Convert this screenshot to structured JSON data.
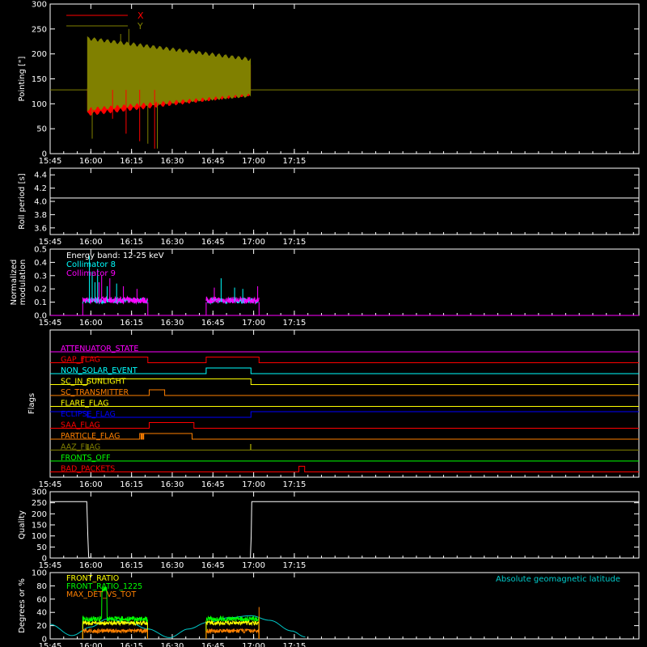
{
  "colors": {
    "background": "#000000",
    "axis": "#ffffff",
    "x_series": "#ff0000",
    "y_series": "#808000",
    "roll": "#ffffff",
    "collimator8": "#00ffff",
    "collimator9": "#ff00ff",
    "geomag": "#00cccc",
    "front_ratio": "#ffff00",
    "front_ratio_1225": "#00ff00",
    "max_det": "#ff8000"
  },
  "time_axis": {
    "range_min": [
      945,
      1162
    ],
    "ticks": [
      {
        "t": 945,
        "label": "15:45"
      },
      {
        "t": 960,
        "label": "16:00"
      },
      {
        "t": 975,
        "label": "16:15"
      },
      {
        "t": 990,
        "label": "16:30"
      },
      {
        "t": 1005,
        "label": "16:45"
      },
      {
        "t": 1020,
        "label": "17:00"
      },
      {
        "t": 1035,
        "label": "17:15"
      }
    ]
  },
  "chart_data": [
    {
      "id": "pointing",
      "type": "line",
      "ylabel": "Pointing [\"]",
      "ylim": [
        0,
        300
      ],
      "yticks": [
        {
          "v": 0,
          "label": "0"
        },
        {
          "v": 50,
          "label": "50"
        },
        {
          "v": 100,
          "label": "100"
        },
        {
          "v": 150,
          "label": "150"
        },
        {
          "v": 200,
          "label": "200"
        },
        {
          "v": 250,
          "label": "250"
        },
        {
          "v": 300,
          "label": "300"
        }
      ],
      "legend": [
        {
          "name": "X",
          "color": "#ff0000"
        },
        {
          "name": "Y",
          "color": "#808000"
        }
      ],
      "baseline": 128,
      "active_range": [
        958.8,
        1019
      ],
      "x_band": {
        "start": [
          80,
          135
        ],
        "end": [
          120,
          180
        ]
      },
      "y_band": {
        "start": [
          90,
          230
        ],
        "end": [
          118,
          188
        ]
      },
      "spikes": [
        {
          "t": 960.5,
          "low": 30,
          "high": 128
        },
        {
          "t": 968,
          "low": 70,
          "high": 128
        },
        {
          "t": 971,
          "low": 128,
          "high": 240
        },
        {
          "t": 973,
          "low": 40,
          "high": 128
        },
        {
          "t": 974,
          "low": 128,
          "high": 250
        },
        {
          "t": 978,
          "low": 25,
          "high": 128
        },
        {
          "t": 981,
          "low": 20,
          "high": 128
        },
        {
          "t": 983.5,
          "low": 10,
          "high": 128
        },
        {
          "t": 984.5,
          "low": 10,
          "high": 128
        }
      ]
    },
    {
      "id": "roll",
      "type": "line",
      "ylabel": "Roll period [s]",
      "ylim": [
        3.5,
        4.5
      ],
      "yticks": [
        {
          "v": 3.6,
          "label": "3.6"
        },
        {
          "v": 3.8,
          "label": "3.8"
        },
        {
          "v": 4.0,
          "label": "4.0"
        },
        {
          "v": 4.2,
          "label": "4.2"
        },
        {
          "v": 4.4,
          "label": "4.4"
        }
      ],
      "value": 4.05
    },
    {
      "id": "modulation",
      "type": "line",
      "ylabel": [
        "Normalized",
        "modulation"
      ],
      "ylim": [
        0,
        0.5
      ],
      "yticks": [
        {
          "v": 0.0,
          "label": "0.0"
        },
        {
          "v": 0.1,
          "label": "0.1"
        },
        {
          "v": 0.2,
          "label": "0.2"
        },
        {
          "v": 0.3,
          "label": "0.3"
        },
        {
          "v": 0.4,
          "label": "0.4"
        },
        {
          "v": 0.5,
          "label": "0.5"
        }
      ],
      "legend": [
        {
          "name": "Energy band: 12-25 keV",
          "color": "#ffffff"
        },
        {
          "name": "Collimator 8",
          "color": "#00ffff"
        },
        {
          "name": "Collimator 9",
          "color": "#ff00ff"
        }
      ],
      "segments": [
        [
          957,
          981
        ],
        [
          1002.5,
          1022
        ]
      ],
      "level": 0.1,
      "peaks": [
        {
          "t": 959.5,
          "v": 0.45,
          "c": "#00ffff"
        },
        {
          "t": 960.5,
          "v": 0.33,
          "c": "#00ffff"
        },
        {
          "t": 961.5,
          "v": 0.25,
          "c": "#00ffff"
        },
        {
          "t": 962.5,
          "v": 0.35,
          "c": "#00ffff"
        },
        {
          "t": 963.0,
          "v": 0.25,
          "c": "#ff00ff"
        },
        {
          "t": 964.0,
          "v": 0.3,
          "c": "#ff00ff"
        },
        {
          "t": 966.0,
          "v": 0.22,
          "c": "#00ffff"
        },
        {
          "t": 967.0,
          "v": 0.28,
          "c": "#ff00ff"
        },
        {
          "t": 969.5,
          "v": 0.24,
          "c": "#00ffff"
        },
        {
          "t": 972.0,
          "v": 0.22,
          "c": "#ff00ff"
        },
        {
          "t": 977.0,
          "v": 0.2,
          "c": "#ff00ff"
        },
        {
          "t": 1005.5,
          "v": 0.21,
          "c": "#ff00ff"
        },
        {
          "t": 1008.0,
          "v": 0.28,
          "c": "#00ffff"
        },
        {
          "t": 1013.0,
          "v": 0.21,
          "c": "#00ffff"
        },
        {
          "t": 1016.0,
          "v": 0.2,
          "c": "#00ffff"
        },
        {
          "t": 1021.5,
          "v": 0.22,
          "c": "#ff00ff"
        }
      ]
    },
    {
      "id": "flags",
      "type": "line",
      "ylabel": "Flags",
      "flags": [
        {
          "name": "ATTENUATOR_STATE",
          "color": "#ff00ff",
          "steps": [
            [
              945,
              0
            ],
            [
              1162,
              0
            ]
          ]
        },
        {
          "name": "GAP_FLAG",
          "color": "#ff0000",
          "steps": [
            [
              945,
              0
            ],
            [
              957,
              1
            ],
            [
              981,
              0
            ],
            [
              1002.5,
              1
            ],
            [
              1022,
              0
            ],
            [
              1162,
              0
            ]
          ]
        },
        {
          "name": "NON_SOLAR_EVENT",
          "color": "#00ffff",
          "steps": [
            [
              945,
              0
            ],
            [
              1002.5,
              1
            ],
            [
              1019,
              0
            ],
            [
              1162,
              0
            ]
          ]
        },
        {
          "name": "SC_IN_SUNLIGHT",
          "color": "#ffff00",
          "steps": [
            [
              945,
              0
            ],
            [
              958.7,
              1
            ],
            [
              1019,
              0
            ],
            [
              1162,
              0
            ]
          ]
        },
        {
          "name": "SC_TRANSMITTER",
          "color": "#ff8000",
          "steps": [
            [
              945,
              0
            ],
            [
              981.5,
              1
            ],
            [
              987.2,
              0
            ],
            [
              1162,
              0
            ]
          ]
        },
        {
          "name": "FLARE_FLAG",
          "color": "#ffff00",
          "steps": [
            [
              945,
              0
            ],
            [
              1162,
              0
            ]
          ]
        },
        {
          "name": "ECLIPSE_FLAG",
          "color": "#0000ff",
          "steps": [
            [
              945,
              1
            ],
            [
              958.7,
              0
            ],
            [
              1019,
              1
            ],
            [
              1162,
              1
            ]
          ]
        },
        {
          "name": "SAA_FLAG",
          "color": "#ff0000",
          "steps": [
            [
              945,
              0
            ],
            [
              981.5,
              1
            ],
            [
              998,
              0
            ],
            [
              1162,
              0
            ]
          ]
        },
        {
          "name": "PARTICLE_FLAG",
          "color": "#ff8000",
          "steps": [
            [
              945,
              0
            ],
            [
              978,
              1
            ],
            [
              978.5,
              0
            ],
            [
              978.8,
              1
            ],
            [
              979.2,
              0
            ],
            [
              979.5,
              1
            ],
            [
              997.3,
              0
            ],
            [
              1162,
              0
            ]
          ]
        },
        {
          "name": "AAZ_FLAG",
          "color": "#808000",
          "steps": [
            [
              945,
              0
            ],
            [
              958.8,
              1
            ],
            [
              959.0,
              0
            ],
            [
              1018.8,
              1
            ],
            [
              1019.0,
              0
            ],
            [
              1162,
              0
            ]
          ]
        },
        {
          "name": "FRONTS_OFF",
          "color": "#00ff00",
          "steps": [
            [
              945,
              0
            ],
            [
              1162,
              0
            ]
          ]
        },
        {
          "name": "BAD_PACKETS",
          "color": "#ff0000",
          "steps": [
            [
              945,
              0
            ],
            [
              1036.7,
              1
            ],
            [
              1038.8,
              0
            ],
            [
              1162,
              0
            ]
          ]
        }
      ]
    },
    {
      "id": "quality",
      "type": "line",
      "ylabel": "Quality",
      "ylim": [
        0,
        300
      ],
      "yticks": [
        {
          "v": 0,
          "label": "0"
        },
        {
          "v": 50,
          "label": "50"
        },
        {
          "v": 100,
          "label": "100"
        },
        {
          "v": 150,
          "label": "150"
        },
        {
          "v": 200,
          "label": "200"
        },
        {
          "v": 250,
          "label": "250"
        },
        {
          "v": 300,
          "label": "300"
        }
      ],
      "points": [
        [
          945,
          255
        ],
        [
          958.5,
          255
        ],
        [
          958.9,
          100
        ],
        [
          959.2,
          5
        ],
        [
          959.6,
          0
        ],
        [
          1018.8,
          0
        ],
        [
          1019.1,
          100
        ],
        [
          1019.3,
          255
        ],
        [
          1162,
          255
        ]
      ]
    },
    {
      "id": "ratios",
      "type": "line",
      "ylabel": "Degrees or %",
      "ylim": [
        0,
        100
      ],
      "yticks": [
        {
          "v": 0,
          "label": "0"
        },
        {
          "v": 20,
          "label": "20"
        },
        {
          "v": 40,
          "label": "40"
        },
        {
          "v": 60,
          "label": "60"
        },
        {
          "v": 80,
          "label": "80"
        },
        {
          "v": 100,
          "label": "100"
        }
      ],
      "legend": [
        {
          "name": "FRONT_RATIO",
          "color": "#ffff00"
        },
        {
          "name": "FRONT_RATIO_1225",
          "color": "#00ff00"
        },
        {
          "name": "MAX_DET_VS_TOT",
          "color": "#ff8000"
        }
      ],
      "annotation": "Absolute geomagnetic latitude",
      "geomag_points": [
        [
          945,
          22
        ],
        [
          953,
          5
        ],
        [
          960,
          18
        ],
        [
          966,
          30
        ],
        [
          974,
          25
        ],
        [
          981,
          15
        ],
        [
          989,
          2
        ],
        [
          996,
          15
        ],
        [
          1003,
          25
        ],
        [
          1011,
          32
        ],
        [
          1019,
          35
        ],
        [
          1026,
          28
        ],
        [
          1034,
          12
        ],
        [
          1039,
          3
        ]
      ],
      "segments": [
        [
          957,
          981
        ],
        [
          1002.5,
          1022
        ]
      ],
      "green_level": 30,
      "orange_level": 12,
      "green_step": {
        "t0": 964,
        "t1": 966,
        "v": 75
      },
      "orange_spike": {
        "t": 1022,
        "v": 48
      }
    }
  ]
}
